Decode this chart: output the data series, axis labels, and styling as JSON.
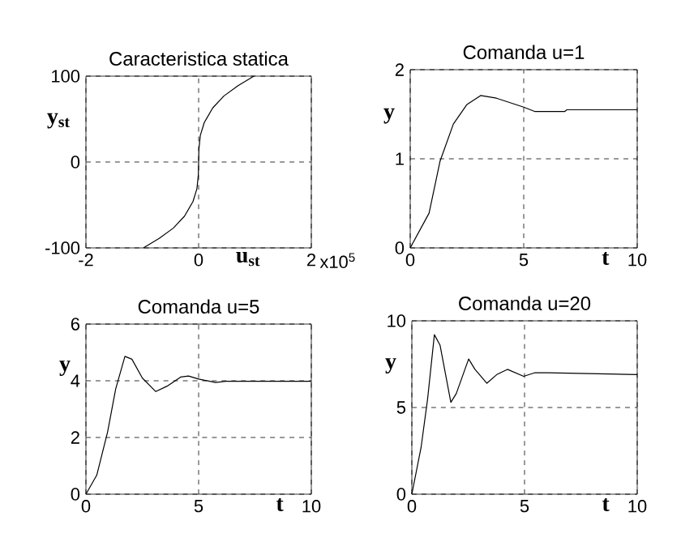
{
  "chart_data": [
    {
      "type": "line",
      "title": "Caracteristica statica",
      "xlabel": "u$_{st}$",
      "ylabel": "y$_{st}$",
      "xlim": [
        -2,
        2
      ],
      "xticks": [
        -2,
        0,
        2
      ],
      "ylim": [
        -100,
        100
      ],
      "yticks": [
        -100,
        0,
        100
      ],
      "grid": true,
      "annotations": [
        "x10$^{5}$"
      ],
      "series": [
        {
          "color": "#000000",
          "x": [
            -0.98,
            -0.7,
            -0.45,
            -0.25,
            -0.1,
            -0.03,
            -0.005,
            0,
            0.005,
            0.03,
            0.1,
            0.25,
            0.45,
            0.7,
            0.98
          ],
          "values": [
            -100,
            -89,
            -77,
            -63,
            -46,
            -31,
            -15,
            0,
            15,
            31,
            46,
            63,
            77,
            89,
            100
          ]
        }
      ]
    },
    {
      "type": "line",
      "title": "Comanda u=1",
      "xlabel": "t",
      "ylabel": "y",
      "xlim": [
        0,
        10
      ],
      "xticks": [
        0,
        5,
        10
      ],
      "ylim": [
        0,
        2
      ],
      "yticks": [
        0,
        1,
        2
      ],
      "grid": true,
      "series": [
        {
          "color": "#000000",
          "x": [
            0,
            0.83,
            1.31,
            1.9,
            2.5,
            3.1,
            3.8,
            5,
            5.5,
            6.8,
            6.9,
            10
          ],
          "values": [
            0,
            0.39,
            0.97,
            1.39,
            1.61,
            1.71,
            1.68,
            1.58,
            1.53,
            1.53,
            1.55,
            1.55
          ]
        }
      ]
    },
    {
      "type": "line",
      "title": "Comanda u=5",
      "xlabel": "t",
      "ylabel": "y",
      "xlim": [
        0,
        10
      ],
      "xticks": [
        0,
        5,
        10
      ],
      "ylim": [
        0,
        6
      ],
      "yticks": [
        0,
        2,
        4,
        6
      ],
      "grid": true,
      "series": [
        {
          "color": "#000000",
          "x": [
            0,
            0.48,
            0.96,
            1.32,
            1.73,
            2.04,
            2.5,
            3.1,
            3.6,
            4.2,
            4.55,
            5.0,
            5.75,
            6.2,
            10
          ],
          "values": [
            0,
            0.67,
            2.19,
            3.71,
            4.86,
            4.76,
            4.1,
            3.62,
            3.81,
            4.13,
            4.17,
            4.06,
            3.94,
            3.98,
            3.98
          ]
        }
      ]
    },
    {
      "type": "line",
      "title": "Comanda u=20",
      "xlabel": "t",
      "ylabel": "y",
      "xlim": [
        0,
        10
      ],
      "xticks": [
        0,
        5,
        10
      ],
      "ylim": [
        0,
        10
      ],
      "yticks": [
        0,
        5,
        10
      ],
      "grid": true,
      "series": [
        {
          "color": "#000000",
          "x": [
            0,
            0.41,
            0.7,
            1.0,
            1.25,
            1.73,
            1.97,
            2.52,
            2.8,
            3.33,
            3.77,
            4.24,
            4.96,
            5.44,
            6.04,
            10
          ],
          "values": [
            0,
            2.7,
            5.5,
            9.2,
            8.6,
            5.3,
            5.8,
            7.8,
            7.2,
            6.4,
            6.9,
            7.2,
            6.8,
            7.0,
            7.0,
            6.9
          ]
        }
      ]
    }
  ]
}
